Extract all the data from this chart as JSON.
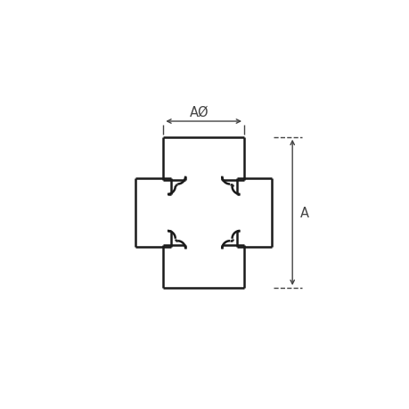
{
  "bg_color": "#ffffff",
  "line_color": "#1a1a1a",
  "dim_color": "#444444",
  "lw_main": 1.8,
  "lw_dim": 1.0,
  "fig_size": [
    4.6,
    4.6
  ],
  "dpi": 100,
  "label_A": "A",
  "label_AO": "AØ"
}
